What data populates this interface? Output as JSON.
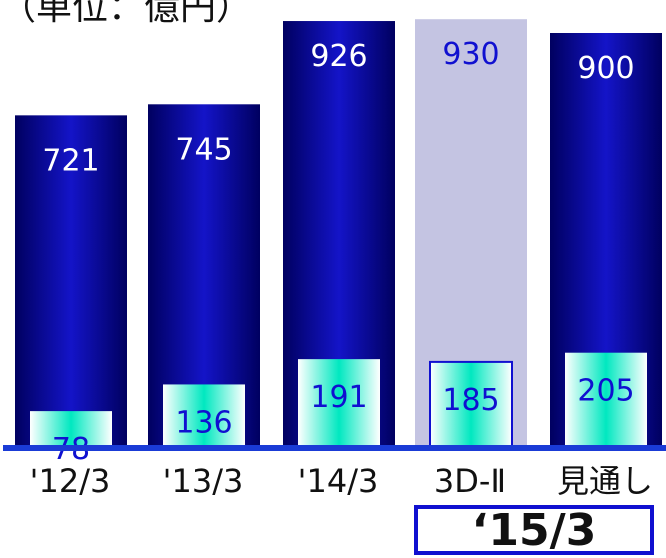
{
  "unit_label": "（単位：億円）",
  "chart_data": {
    "type": "bar",
    "title": "",
    "unit": "（単位：億円）",
    "categories": [
      "'12/3",
      "'13/3",
      "'14/3",
      "3D-Ⅱ",
      "見通し"
    ],
    "group_label": "‘15/3",
    "ylim": [
      0,
      950
    ],
    "series": [
      {
        "values": [
          721,
          745,
          926,
          930,
          900
        ]
      },
      {
        "values": [
          78,
          136,
          191,
          185,
          205
        ]
      }
    ],
    "colors": {
      "outer": "#0a0aa8",
      "outer_dark": "#000070",
      "inner": "#00e8c0",
      "inner_light": "#ffffff",
      "plan_bg": "#c4c4e2",
      "label": "#1010d0",
      "axis": "#1a3bd6"
    }
  }
}
